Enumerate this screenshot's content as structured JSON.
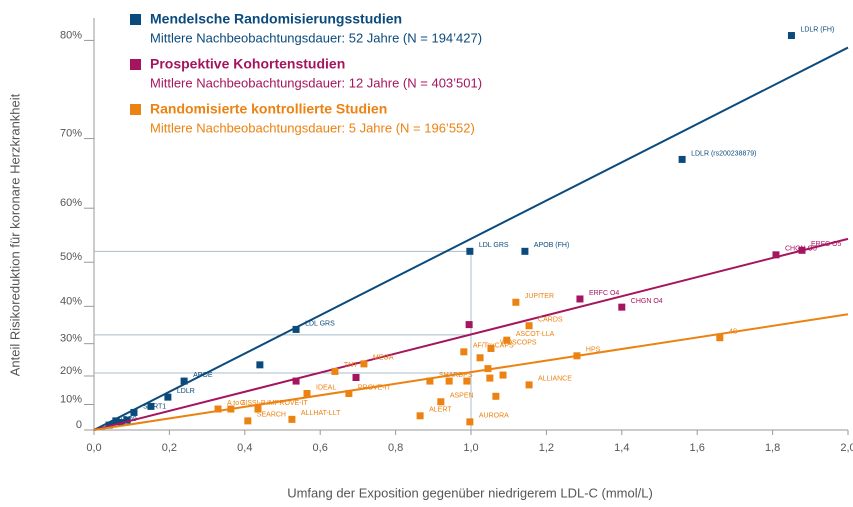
{
  "chart_data": {
    "type": "scatter",
    "y_scale": "risk-log",
    "xlabel": "Umfang der Exposition gegenüber niedrigerem LDL-C (mmol/L)",
    "ylabel": "Anteil Risikoreduktion für koronare Herzkrankheit",
    "xlim": [
      0,
      2.0
    ],
    "ylim": [
      0,
      81
    ],
    "xticks": [
      {
        "value": 0,
        "label": "0,0"
      },
      {
        "value": 0.2,
        "label": "0,2"
      },
      {
        "value": 0.4,
        "label": "0,4"
      },
      {
        "value": 0.6,
        "label": "0,6"
      },
      {
        "value": 0.8,
        "label": "0,8"
      },
      {
        "value": 1.0,
        "label": "1,0"
      },
      {
        "value": 1.2,
        "label": "1,2"
      },
      {
        "value": 1.4,
        "label": "1,4"
      },
      {
        "value": 1.6,
        "label": "1,6"
      },
      {
        "value": 1.8,
        "label": "1,8"
      },
      {
        "value": 2.0,
        "label": "2,0"
      }
    ],
    "yticks": [
      0,
      {
        "value": 10,
        "label": "10%"
      },
      {
        "value": 20,
        "label": "20%"
      },
      {
        "value": 30,
        "label": "30%"
      },
      {
        "value": 40,
        "label": "40%"
      },
      {
        "value": 50,
        "label": "50%"
      },
      {
        "value": 60,
        "label": "60%"
      },
      {
        "value": 70,
        "label": "70%"
      },
      {
        "value": 80,
        "label": "80%"
      }
    ],
    "grid": false,
    "reference_lines": {
      "color": "#a9bccb",
      "x": 1.0,
      "y": [
        52.2,
        32.5,
        21
      ]
    },
    "series": [
      {
        "name": "Mendelsche Randomisierungsstudien",
        "description": "Mittlere Nachbeobachtungsdauer: 52 Jahre (N = 194’427)",
        "color": "#0b4a7c",
        "x": [
          0.04,
          0.058,
          0.072,
          0.088,
          0.106,
          0.151,
          0.196,
          0.239,
          0.44,
          0.536,
          0.997,
          1.143,
          1.56,
          1.85
        ],
        "values": [
          2,
          3.7,
          3,
          4,
          7,
          9.3,
          12.7,
          18.3,
          23.6,
          34,
          52.2,
          52.2,
          67.3,
          80.4
        ],
        "labels": [
          "APO9",
          null,
          null,
          null,
          "SORT1",
          null,
          "LDLR",
          "APOE",
          null,
          "LDL GRS",
          "LDL GRS",
          "APOB (FH)",
          "LDLR (rs200238879)",
          "LDLR (FH)"
        ],
        "trend": {
          "x": [
            0,
            2.0
          ],
          "values": [
            0,
            79.4
          ]
        }
      },
      {
        "name": "Prospektive Kohortenstudien",
        "description": "Mittlere Nachbeobachtungsdauer: 12 Jahre (N = 403’501)",
        "color": "#a5155f",
        "x": [
          0.536,
          0.695,
          0.995,
          1.289,
          1.4,
          1.809,
          1.878
        ],
        "values": [
          18.3,
          19.5,
          35.3,
          41.8,
          39.8,
          51.5,
          52.4
        ],
        "labels": [
          null,
          null,
          null,
          "ERFC O4",
          "CHGN O4",
          "CHGN O5",
          "ERFC O5"
        ],
        "trend": {
          "x": [
            0,
            2.0
          ],
          "values": [
            0,
            54.6
          ]
        }
      },
      {
        "name": "Randomisierte kontrollierte Studien",
        "description": "Mittlere Nachbeobachtungsdauer: 5 Jahre (N = 196’552)",
        "color": "#ec8211",
        "x": [
          0.329,
          0.363,
          0.408,
          0.435,
          0.525,
          0.565,
          0.639,
          0.676,
          0.716,
          0.865,
          0.891,
          0.92,
          0.942,
          0.981,
          0.989,
          0.997,
          1.024,
          1.045,
          1.05,
          1.053,
          1.066,
          1.085,
          1.095,
          1.119,
          1.154,
          1.154,
          1.281,
          1.66
        ],
        "values": [
          8.3,
          8.3,
          3.7,
          8.3,
          4.3,
          14,
          21.5,
          14,
          23.9,
          5.7,
          18.3,
          11,
          18.3,
          27.6,
          18.3,
          3.3,
          25.8,
          22.4,
          19.3,
          28.6,
          13,
          20.3,
          31,
          41,
          35,
          17,
          26.4,
          31.7
        ],
        "labels": [
          "A to Z",
          "GISSI-P",
          "SEARCH",
          "IMPROVE-IT",
          "ALLHAT-LLT",
          "IDEAL",
          "TNT",
          "PROVE-IT",
          "MEGA",
          "ALERT",
          "SHARP",
          "ASPEN",
          "UPS",
          "AF/TexCAPS",
          null,
          "AURORA",
          null,
          null,
          null,
          "WOSCOPS",
          null,
          null,
          "ASCOT-LLA",
          "JUPITER",
          "CARDS",
          "ALLIANCE",
          "HPS",
          "4S"
        ],
        "trend": {
          "x": [
            0,
            2.0
          ],
          "values": [
            0,
            38
          ]
        }
      }
    ]
  }
}
